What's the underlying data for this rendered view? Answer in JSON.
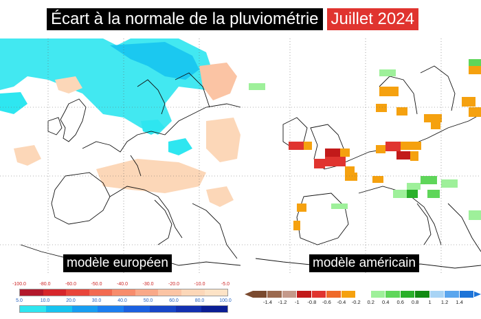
{
  "title": {
    "main": "Écart à la normale de la pluviométrie",
    "date": "Juillet 2024"
  },
  "maps": {
    "left": {
      "label": "modèle européen"
    },
    "right": {
      "label": "modèle américain"
    }
  },
  "legend_eu": {
    "negative_ticks": [
      "-100.0",
      "-80.0",
      "-60.0",
      "-50.0",
      "-40.0",
      "-30.0",
      "-20.0",
      "-10.0",
      "-5.0"
    ],
    "positive_ticks": [
      "5.0",
      "10.0",
      "20.0",
      "30.0",
      "40.0",
      "50.0",
      "60.0",
      "80.0",
      "100.0"
    ],
    "negative_colors": [
      "#b2182b",
      "#d6262b",
      "#e8453a",
      "#f26a50",
      "#f78c6c",
      "#f9a989",
      "#fbc4a4",
      "#fcd7b8",
      "#fde3c6"
    ],
    "positive_colors": [
      "#2ee6f0",
      "#17c4f0",
      "#179ef2",
      "#1b7ef0",
      "#1a60e0",
      "#1746c8",
      "#1230b0",
      "#0a1e94"
    ]
  },
  "legend_us": {
    "ticks": [
      "-1.4",
      "-1.2",
      "-1",
      "-0.8",
      "-0.6",
      "-0.4",
      "-0.2",
      "0.2",
      "0.4",
      "0.6",
      "0.8",
      "1",
      "1.2",
      "1.4"
    ],
    "colors": [
      "#7a4a2f",
      "#9c6a4f",
      "#c4998a",
      "#c21a1a",
      "#e0342f",
      "#ef6a2a",
      "#f5a10f",
      "#ffffff",
      "#9ef09a",
      "#5fd65a",
      "#2ab02a",
      "#118a11",
      "#a8d4f5",
      "#5aa6ee",
      "#1e74d8"
    ]
  }
}
